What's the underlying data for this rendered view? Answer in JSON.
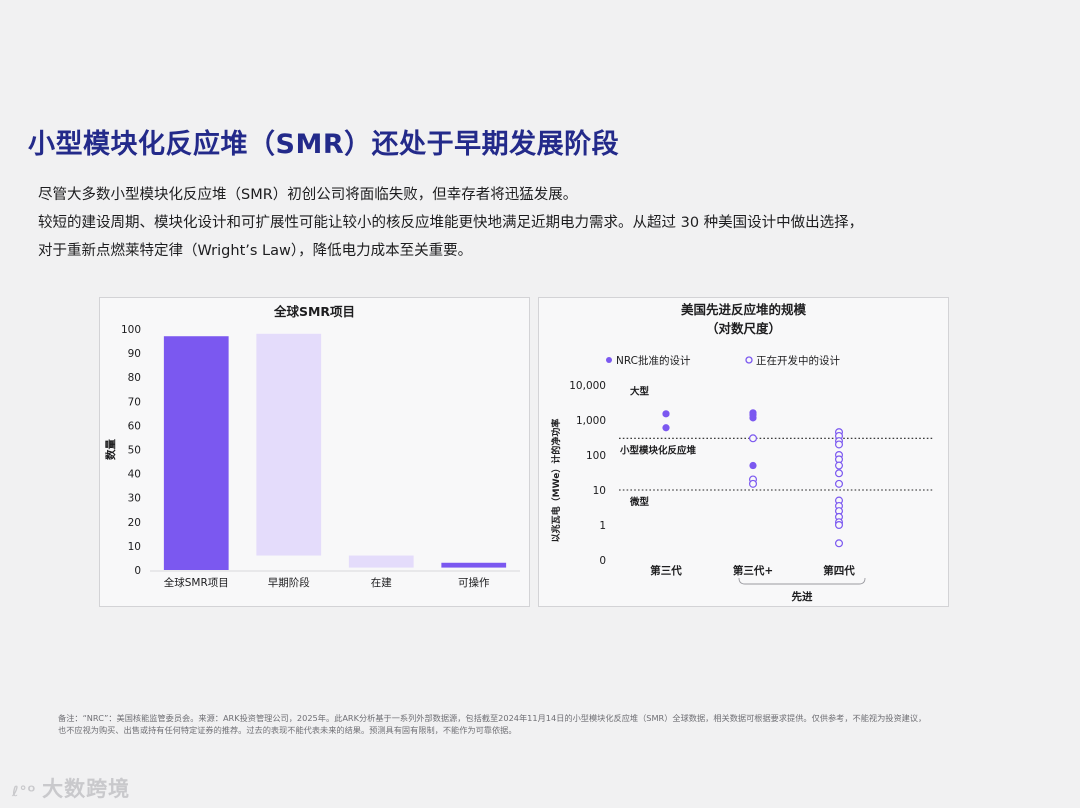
{
  "page": {
    "title": "小型模块化反应堆（SMR）还处于早期发展阶段",
    "body_lines": [
      "尽管大多数小型模块化反应堆（SMR）初创公司将面临失败，但幸存者将迅猛发展。",
      "较短的建设周期、模块化设计和可扩展性可能让较小的核反应堆能更快地满足近期电力需求。从超过 30 种美国设计中做出选择，",
      "对于重新点燃莱特定律（Wright’s Law），降低电力成本至关重要。"
    ],
    "footnote_lines": [
      "备注：“NRC”：美国核能监管委员会。来源：ARK投资管理公司，2025年。此ARK分析基于一系列外部数据源，包括截至2024年11月14日的小型模块化反应堆（SMR）全球数据，相关数据可根据要求提供。仅供参考，不能视为投资建议，",
      "也不应视为购买、出售或持有任何特定证券的推荐。过去的表现不能代表未来的结果。预测具有固有限制，不能作为可靠依据。"
    ],
    "watermark": "大数跨境",
    "watermark_logo": "ℓ°ᴼ"
  },
  "colors": {
    "title": "#232a8a",
    "bar_dark": "#7b58f0",
    "bar_light": "#e4dcfb",
    "approved": "#7b58f0",
    "developing": "#7b58f0"
  },
  "chart_data": [
    {
      "type": "bar",
      "title": "全球SMR项目",
      "ylabel": "数量",
      "xlabel": "",
      "ylim": [
        0,
        100
      ],
      "yticks": [
        0,
        10,
        20,
        30,
        40,
        50,
        60,
        70,
        80,
        90,
        100
      ],
      "grid": false,
      "categories": [
        "全球SMR项目",
        "早期阶段",
        "在建",
        "可操作"
      ],
      "base": [
        0,
        6,
        1,
        1
      ],
      "values": [
        97,
        92,
        5,
        2
      ],
      "bar_colors": [
        "#7b58f0",
        "#e4dcfb",
        "#e4dcfb",
        "#7b58f0"
      ]
    },
    {
      "type": "scatter",
      "title_lines": [
        "美国先进反应堆的规模",
        "（对数尺度）"
      ],
      "ylabel": "以兆瓦电（MWe）计的净功率",
      "yscale": "log",
      "yticks": [
        0,
        1,
        10,
        100,
        1000,
        10000
      ],
      "ytick_labels": [
        "0",
        "1",
        "10",
        "100",
        "1,000",
        "10,000"
      ],
      "categories": [
        "第三代",
        "第三代+",
        "第四代"
      ],
      "category_group": {
        "label": "先进",
        "members": [
          "第三代+",
          "第四代"
        ]
      },
      "legend": [
        "NRC批准的设计",
        "正在开发中的设计"
      ],
      "legend_position": "top",
      "thresholds": [
        {
          "value": 300,
          "label_above": "大型",
          "label_below": "小型模块化反应堆"
        },
        {
          "value": 10,
          "label_below": "微型"
        }
      ],
      "series": [
        {
          "name": "NRC批准的设计",
          "filled": true,
          "points": [
            {
              "x": "第三代",
              "y": 1500
            },
            {
              "x": "第三代",
              "y": 600
            },
            {
              "x": "第三代+",
              "y": 1600
            },
            {
              "x": "第三代+",
              "y": 1400
            },
            {
              "x": "第三代+",
              "y": 1150
            },
            {
              "x": "第三代+",
              "y": 50
            }
          ]
        },
        {
          "name": "正在开发中的设计",
          "filled": false,
          "points": [
            {
              "x": "第三代+",
              "y": 300
            },
            {
              "x": "第三代+",
              "y": 20
            },
            {
              "x": "第三代+",
              "y": 15
            },
            {
              "x": "第四代",
              "y": 450
            },
            {
              "x": "第四代",
              "y": 350
            },
            {
              "x": "第四代",
              "y": 250
            },
            {
              "x": "第四代",
              "y": 200
            },
            {
              "x": "第四代",
              "y": 100
            },
            {
              "x": "第四代",
              "y": 75
            },
            {
              "x": "第四代",
              "y": 50
            },
            {
              "x": "第四代",
              "y": 30
            },
            {
              "x": "第四代",
              "y": 15
            },
            {
              "x": "第四代",
              "y": 5
            },
            {
              "x": "第四代",
              "y": 3.5
            },
            {
              "x": "第四代",
              "y": 2.5
            },
            {
              "x": "第四代",
              "y": 1.7
            },
            {
              "x": "第四代",
              "y": 1.2
            },
            {
              "x": "第四代",
              "y": 1
            },
            {
              "x": "第四代",
              "y": 0.3
            }
          ]
        }
      ]
    }
  ]
}
